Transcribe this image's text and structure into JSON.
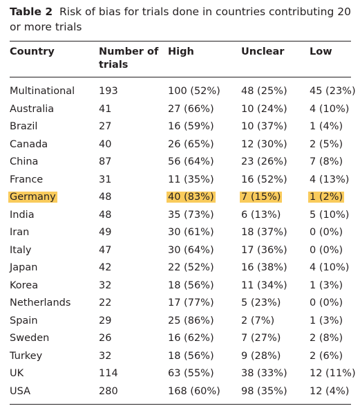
{
  "caption": {
    "label": "Table 2",
    "text": "Risk of bias for trials done in countries contributing 20 or more trials"
  },
  "headers": [
    "Country",
    "Number of trials",
    "High",
    "Unclear",
    "Low"
  ],
  "header_lines": {
    "country": "Country",
    "trials_line1": "Number of",
    "trials_line2": "trials",
    "high": "High",
    "unclear": "Unclear",
    "low": "Low"
  },
  "highlight_color": "#f9cb5c",
  "rows": [
    {
      "country": "Multinational",
      "trials": "193",
      "high": "100 (52%)",
      "unclear": "48 (25%)",
      "low": "45 (23%)"
    },
    {
      "country": "Australia",
      "trials": "41",
      "high": "27 (66%)",
      "unclear": "10 (24%)",
      "low": "4 (10%)"
    },
    {
      "country": "Brazil",
      "trials": "27",
      "high": "16 (59%)",
      "unclear": "10 (37%)",
      "low": "1 (4%)"
    },
    {
      "country": "Canada",
      "trials": "40",
      "high": "26 (65%)",
      "unclear": "12 (30%)",
      "low": "2 (5%)"
    },
    {
      "country": "China",
      "trials": "87",
      "high": "56 (64%)",
      "unclear": "23 (26%)",
      "low": "7 (8%)"
    },
    {
      "country": "France",
      "trials": "31",
      "high": "11 (35%)",
      "unclear": "16 (52%)",
      "low": "4 (13%)"
    },
    {
      "country": "Germany",
      "trials": "48",
      "high": "40 (83%)",
      "unclear": "7 (15%)",
      "low": "1 (2%)",
      "highlighted": true
    },
    {
      "country": "India",
      "trials": "48",
      "high": "35 (73%)",
      "unclear": "6 (13%)",
      "low": "5 (10%)"
    },
    {
      "country": "Iran",
      "trials": "49",
      "high": "30 (61%)",
      "unclear": "18 (37%)",
      "low": "0 (0%)"
    },
    {
      "country": "Italy",
      "trials": "47",
      "high": "30 (64%)",
      "unclear": "17 (36%)",
      "low": "0 (0%)"
    },
    {
      "country": "Japan",
      "trials": "42",
      "high": "22 (52%)",
      "unclear": "16 (38%)",
      "low": "4 (10%)"
    },
    {
      "country": "Korea",
      "trials": "32",
      "high": "18 (56%)",
      "unclear": "11 (34%)",
      "low": "1 (3%)"
    },
    {
      "country": "Netherlands",
      "trials": "22",
      "high": "17 (77%)",
      "unclear": "5 (23%)",
      "low": "0 (0%)"
    },
    {
      "country": "Spain",
      "trials": "29",
      "high": "25 (86%)",
      "unclear": "2 (7%)",
      "low": "1 (3%)"
    },
    {
      "country": "Sweden",
      "trials": "26",
      "high": "16 (62%)",
      "unclear": "7 (27%)",
      "low": "2 (8%)"
    },
    {
      "country": "Turkey",
      "trials": "32",
      "high": "18 (56%)",
      "unclear": "9 (28%)",
      "low": "2 (6%)"
    },
    {
      "country": "UK",
      "trials": "114",
      "high": "63 (55%)",
      "unclear": "38 (33%)",
      "low": "12 (11%)"
    },
    {
      "country": "USA",
      "trials": "280",
      "high": "168 (60%)",
      "unclear": "98 (35%)",
      "low": "12 (4%)"
    }
  ]
}
